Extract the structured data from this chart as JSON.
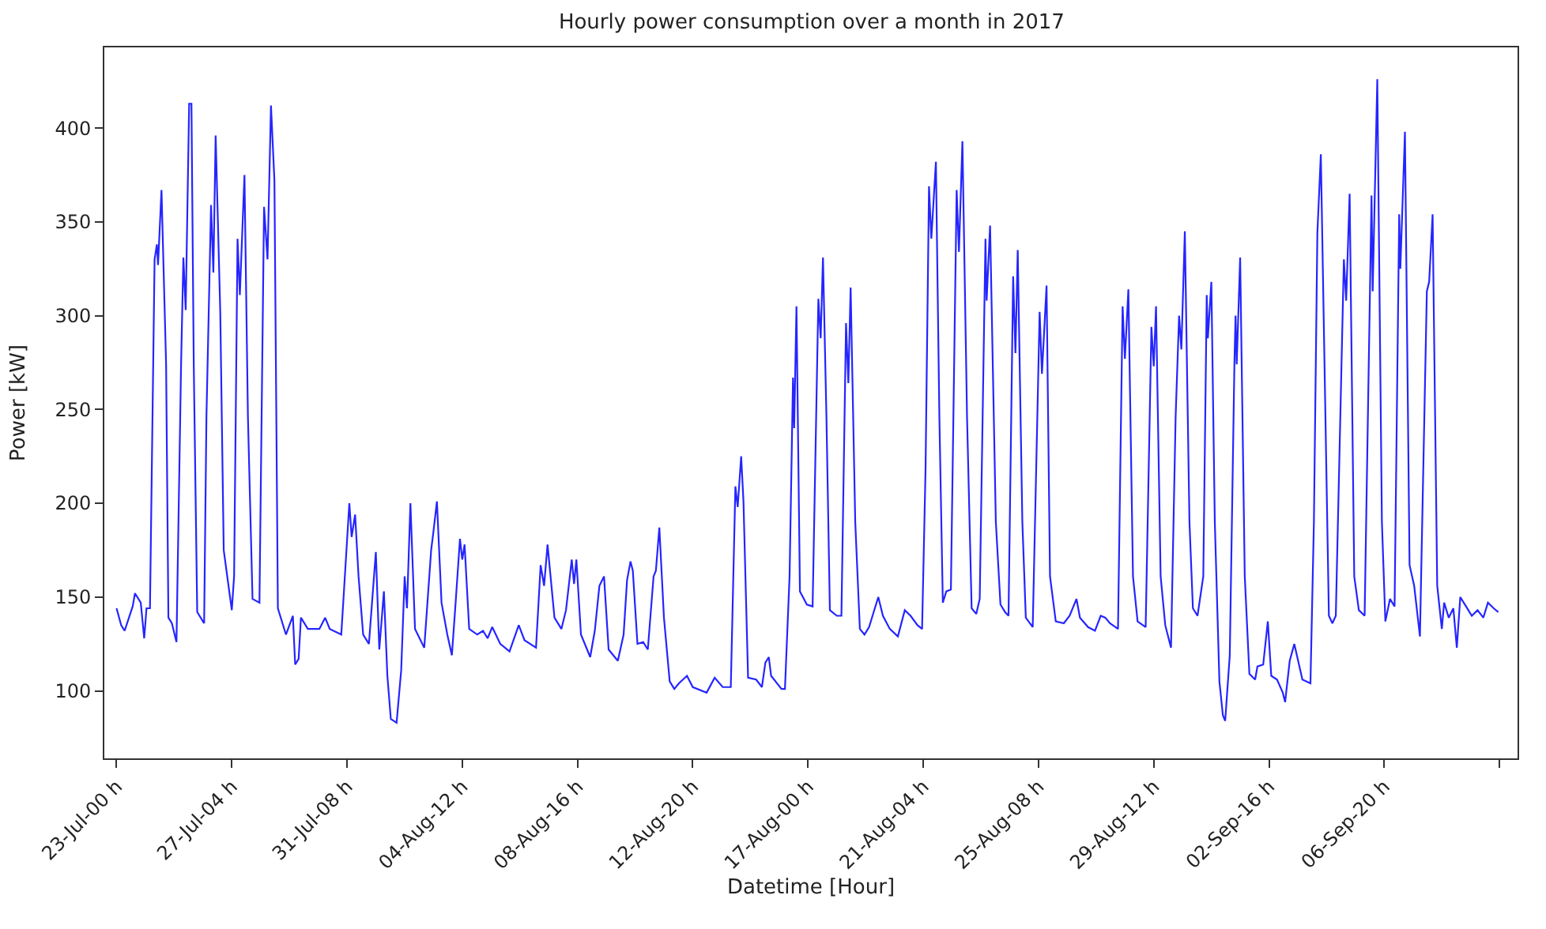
{
  "chart_data": {
    "type": "line",
    "title": "Hourly power consumption over a month in 2017",
    "xlabel": "Datetime [Hour]",
    "ylabel": "Power [kW]",
    "xlim": [
      "2017-07-22T13:24",
      "2017-09-11T15:42"
    ],
    "xticks": [
      {
        "value": "2017-07-23T00:00",
        "label": "23-Jul-00 h"
      },
      {
        "value": "2017-07-27T04:00",
        "label": "27-Jul-04 h"
      },
      {
        "value": "2017-07-31T08:00",
        "label": "31-Jul-08 h"
      },
      {
        "value": "2017-08-04T12:00",
        "label": "04-Aug-12 h"
      },
      {
        "value": "2017-08-08T16:00",
        "label": "08-Aug-16 h"
      },
      {
        "value": "2017-08-12T20:00",
        "label": "12-Aug-20 h"
      },
      {
        "value": "2017-08-17T00:00",
        "label": "17-Aug-00 h"
      },
      {
        "value": "2017-08-21T04:00",
        "label": "21-Aug-04 h"
      },
      {
        "value": "2017-08-25T08:00",
        "label": "25-Aug-08 h"
      },
      {
        "value": "2017-08-29T12:00",
        "label": "29-Aug-12 h"
      },
      {
        "value": "2017-09-02T16:00",
        "label": "02-Sep-16 h"
      },
      {
        "value": "2017-09-06T20:00",
        "label": "06-Sep-20 h"
      },
      {
        "value": "2017-09-11T00:00",
        "label": null
      }
    ],
    "ylim": [
      64,
      443
    ],
    "yticks": [
      100,
      150,
      200,
      250,
      300,
      350,
      400
    ],
    "marker": "none",
    "line_style": "solid",
    "series": [
      {
        "color": "#0000ff",
        "x": [
          "2017-07-23T00:00",
          "2017-07-23T04:00",
          "2017-07-23T07:00",
          "2017-07-23T14:00",
          "2017-07-23T16:00",
          "2017-07-23T21:00",
          "2017-07-24T00:00",
          "2017-07-24T02:00",
          "2017-07-24T05:00",
          "2017-07-24T09:00",
          "2017-07-24T11:00",
          "2017-07-24T12:00",
          "2017-07-24T15:00",
          "2017-07-24T19:00",
          "2017-07-24T21:00",
          "2017-07-25T00:00",
          "2017-07-25T04:00",
          "2017-07-25T08:00",
          "2017-07-25T10:00",
          "2017-07-25T12:00",
          "2017-07-25T15:00",
          "2017-07-25T17:00",
          "2017-07-25T19:00",
          "2017-07-25T22:00",
          "2017-07-26T04:00",
          "2017-07-26T06:00",
          "2017-07-26T10:00",
          "2017-07-26T12:00",
          "2017-07-26T14:00",
          "2017-07-26T18:00",
          "2017-07-26T21:00",
          "2017-07-27T04:00",
          "2017-07-27T06:00",
          "2017-07-27T09:00",
          "2017-07-27T11:00",
          "2017-07-27T15:00",
          "2017-07-27T18:00",
          "2017-07-27T22:00",
          "2017-07-28T04:00",
          "2017-07-28T08:00",
          "2017-07-28T11:00",
          "2017-07-28T14:00",
          "2017-07-28T17:00",
          "2017-07-28T20:00",
          "2017-07-29T03:00",
          "2017-07-29T09:00",
          "2017-07-29T11:00",
          "2017-07-29T14:00",
          "2017-07-29T16:00",
          "2017-07-29T22:00",
          "2017-07-30T08:00",
          "2017-07-30T13:00",
          "2017-07-30T17:00",
          "2017-07-31T03:00",
          "2017-07-31T05:00",
          "2017-07-31T10:00",
          "2017-07-31T12:00",
          "2017-07-31T15:00",
          "2017-07-31T18:00",
          "2017-07-31T22:00",
          "2017-08-01T03:00",
          "2017-08-01T09:00",
          "2017-08-01T12:00",
          "2017-08-01T16:00",
          "2017-08-01T19:00",
          "2017-08-01T22:00",
          "2017-08-02T03:00",
          "2017-08-02T07:00",
          "2017-08-02T10:00",
          "2017-08-02T12:00",
          "2017-08-02T15:00",
          "2017-08-02T19:00",
          "2017-08-03T03:00",
          "2017-08-03T09:00",
          "2017-08-03T11:00",
          "2017-08-03T14:00",
          "2017-08-03T18:00",
          "2017-08-03T23:00",
          "2017-08-04T03:00",
          "2017-08-04T06:00",
          "2017-08-04T10:00",
          "2017-08-04T12:00",
          "2017-08-04T14:00",
          "2017-08-04T18:00",
          "2017-08-05T01:00",
          "2017-08-05T06:00",
          "2017-08-05T10:00",
          "2017-08-05T14:00",
          "2017-08-05T21:00",
          "2017-08-06T05:00",
          "2017-08-06T13:00",
          "2017-08-06T18:00",
          "2017-08-07T04:00",
          "2017-08-07T08:00",
          "2017-08-07T11:00",
          "2017-08-07T14:00",
          "2017-08-07T20:00",
          "2017-08-08T02:00",
          "2017-08-08T06:00",
          "2017-08-08T11:00",
          "2017-08-08T13:00",
          "2017-08-08T15:00",
          "2017-08-08T19:00",
          "2017-08-09T03:00",
          "2017-08-09T07:00",
          "2017-08-09T11:00",
          "2017-08-09T15:00",
          "2017-08-09T19:00",
          "2017-08-10T03:00",
          "2017-08-10T08:00",
          "2017-08-10T11:00",
          "2017-08-10T14:00",
          "2017-08-10T16:00",
          "2017-08-10T20:00",
          "2017-08-11T01:00",
          "2017-08-11T05:00",
          "2017-08-11T10:00",
          "2017-08-11T12:00",
          "2017-08-11T15:00",
          "2017-08-11T19:00",
          "2017-08-12T00:00",
          "2017-08-12T04:00",
          "2017-08-12T08:00",
          "2017-08-12T15:00",
          "2017-08-12T20:00",
          "2017-08-13T08:00",
          "2017-08-13T15:00",
          "2017-08-13T22:00",
          "2017-08-14T05:00",
          "2017-08-14T09:00",
          "2017-08-14T11:00",
          "2017-08-14T14:00",
          "2017-08-14T16:00",
          "2017-08-14T20:00",
          "2017-08-15T03:00",
          "2017-08-15T08:00",
          "2017-08-15T11:00",
          "2017-08-15T14:00",
          "2017-08-15T16:00",
          "2017-08-16T01:00",
          "2017-08-16T04:00",
          "2017-08-16T08:00",
          "2017-08-16T11:00",
          "2017-08-16T12:00",
          "2017-08-16T14:00",
          "2017-08-16T17:00",
          "2017-08-16T23:00",
          "2017-08-17T04:00",
          "2017-08-17T09:00",
          "2017-08-17T11:00",
          "2017-08-17T13:00",
          "2017-08-17T16:00",
          "2017-08-17T19:00",
          "2017-08-18T01:00",
          "2017-08-18T05:00",
          "2017-08-18T09:00",
          "2017-08-18T11:00",
          "2017-08-18T13:00",
          "2017-08-18T17:00",
          "2017-08-18T21:00",
          "2017-08-19T01:00",
          "2017-08-19T05:00",
          "2017-08-19T08:00",
          "2017-08-19T13:00",
          "2017-08-19T17:00",
          "2017-08-19T23:00",
          "2017-08-20T06:00",
          "2017-08-20T12:00",
          "2017-08-20T17:00",
          "2017-08-20T23:00",
          "2017-08-21T03:00",
          "2017-08-21T06:00",
          "2017-08-21T09:00",
          "2017-08-21T11:00",
          "2017-08-21T15:00",
          "2017-08-21T18:00",
          "2017-08-21T21:00",
          "2017-08-22T00:00",
          "2017-08-22T04:00",
          "2017-08-22T09:00",
          "2017-08-22T11:00",
          "2017-08-22T14:00",
          "2017-08-22T18:00",
          "2017-08-22T22:00",
          "2017-08-23T02:00",
          "2017-08-23T05:00",
          "2017-08-23T10:00",
          "2017-08-23T11:00",
          "2017-08-23T14:00",
          "2017-08-23T19:00",
          "2017-08-23T23:00",
          "2017-08-24T03:00",
          "2017-08-24T06:00",
          "2017-08-24T10:00",
          "2017-08-24T12:00",
          "2017-08-24T14:00",
          "2017-08-24T18:00",
          "2017-08-24T21:00",
          "2017-08-25T03:00",
          "2017-08-25T09:00",
          "2017-08-25T11:00",
          "2017-08-25T15:00",
          "2017-08-25T18:00",
          "2017-08-25T23:00",
          "2017-08-26T06:00",
          "2017-08-26T11:00",
          "2017-08-26T17:00",
          "2017-08-26T20:00",
          "2017-08-27T03:00",
          "2017-08-27T09:00",
          "2017-08-27T14:00",
          "2017-08-27T18:00",
          "2017-08-27T22:00",
          "2017-08-28T05:00",
          "2017-08-28T09:00",
          "2017-08-28T11:00",
          "2017-08-28T14:00",
          "2017-08-28T18:00",
          "2017-08-28T22:00",
          "2017-08-29T05:00",
          "2017-08-29T10:00",
          "2017-08-29T12:00",
          "2017-08-29T14:00",
          "2017-08-29T18:00",
          "2017-08-29T22:00",
          "2017-08-30T03:00",
          "2017-08-30T07:00",
          "2017-08-30T10:00",
          "2017-08-30T12:00",
          "2017-08-30T15:00",
          "2017-08-30T19:00",
          "2017-08-30T22:00",
          "2017-08-31T02:00",
          "2017-08-31T07:00",
          "2017-08-31T10:00",
          "2017-08-31T11:00",
          "2017-08-31T14:00",
          "2017-08-31T17:00",
          "2017-08-31T21:00",
          "2017-09-01T00:00",
          "2017-09-01T02:00",
          "2017-09-01T06:00",
          "2017-09-01T10:00",
          "2017-09-01T11:00",
          "2017-09-01T12:00",
          "2017-09-01T15:00",
          "2017-09-01T19:00",
          "2017-09-01T23:00",
          "2017-09-02T04:00",
          "2017-09-02T06:00",
          "2017-09-02T11:00",
          "2017-09-02T15:00",
          "2017-09-02T18:00",
          "2017-09-02T23:00",
          "2017-09-03T04:00",
          "2017-09-03T06:00",
          "2017-09-03T10:00",
          "2017-09-03T14:00",
          "2017-09-03T21:00",
          "2017-09-04T04:00",
          "2017-09-04T07:00",
          "2017-09-04T10:00",
          "2017-09-04T13:00",
          "2017-09-04T17:00",
          "2017-09-04T20:00",
          "2017-09-04T23:00",
          "2017-09-05T02:00",
          "2017-09-05T09:00",
          "2017-09-05T11:00",
          "2017-09-05T14:00",
          "2017-09-05T18:00",
          "2017-09-05T22:00",
          "2017-09-06T03:00",
          "2017-09-06T09:00",
          "2017-09-06T10:00",
          "2017-09-06T14:00",
          "2017-09-06T18:00",
          "2017-09-06T21:00",
          "2017-09-07T01:00",
          "2017-09-07T05:00",
          "2017-09-07T09:00",
          "2017-09-07T10:00",
          "2017-09-07T14:00",
          "2017-09-07T18:00",
          "2017-09-07T22:00",
          "2017-09-08T03:00",
          "2017-09-08T09:00",
          "2017-09-08T11:00",
          "2017-09-08T14:00",
          "2017-09-08T18:00",
          "2017-09-08T22:00",
          "2017-09-09T00:00",
          "2017-09-09T04:00",
          "2017-09-09T08:00",
          "2017-09-09T11:00",
          "2017-09-09T14:00",
          "2017-09-09T19:00",
          "2017-09-10T00:00",
          "2017-09-10T05:00",
          "2017-09-10T10:00",
          "2017-09-10T14:00",
          "2017-09-10T19:00",
          "2017-09-10T23:00"
        ],
        "values": [
          144,
          135,
          132,
          145,
          152,
          147,
          128,
          144,
          144,
          330,
          338,
          327,
          367,
          274,
          139,
          136,
          126,
          274,
          331,
          303,
          413,
          413,
          274,
          142,
          136,
          246,
          359,
          323,
          396,
          302,
          175,
          143,
          161,
          341,
          311,
          375,
          246,
          149,
          147,
          358,
          330,
          412,
          372,
          144,
          130,
          140,
          114,
          117,
          139,
          133,
          133,
          139,
          133,
          130,
          150,
          200,
          182,
          194,
          161,
          130,
          125,
          174,
          122,
          153,
          108,
          85,
          83,
          111,
          161,
          144,
          200,
          133,
          123,
          175,
          185,
          201,
          147,
          130,
          119,
          145,
          181,
          170,
          178,
          133,
          130,
          132,
          128,
          134,
          125,
          121,
          135,
          127,
          123,
          167,
          156,
          178,
          139,
          133,
          143,
          170,
          157,
          170,
          130,
          118,
          132,
          156,
          161,
          122,
          116,
          130,
          159,
          169,
          164,
          125,
          126,
          122,
          161,
          164,
          187,
          139,
          105,
          101,
          104,
          108,
          102,
          99,
          107,
          102,
          102,
          209,
          198,
          225,
          201,
          107,
          106,
          102,
          115,
          118,
          108,
          101,
          101,
          161,
          267,
          240,
          305,
          153,
          146,
          145,
          309,
          288,
          331,
          246,
          143,
          140,
          140,
          296,
          264,
          315,
          190,
          133,
          130,
          134,
          140,
          150,
          140,
          133,
          129,
          143,
          140,
          135,
          133,
          218,
          369,
          341,
          382,
          246,
          147,
          153,
          154,
          367,
          334,
          393,
          246,
          144,
          141,
          149,
          341,
          308,
          348,
          190,
          146,
          142,
          140,
          321,
          280,
          335,
          190,
          139,
          134,
          302,
          269,
          316,
          161,
          137,
          136,
          140,
          149,
          139,
          134,
          132,
          140,
          139,
          136,
          133,
          305,
          277,
          314,
          161,
          137,
          134,
          294,
          273,
          305,
          161,
          135,
          123,
          246,
          300,
          282,
          345,
          190,
          144,
          140,
          161,
          311,
          288,
          318,
          190,
          105,
          87,
          84,
          119,
          274,
          300,
          274,
          331,
          161,
          109,
          106,
          113,
          114,
          137,
          108,
          106,
          99,
          94,
          116,
          125,
          106,
          104,
          190,
          344,
          386,
          246,
          140,
          136,
          140,
          330,
          308,
          365,
          161,
          143,
          140,
          364,
          313,
          426,
          190,
          137,
          149,
          145,
          354,
          325,
          398,
          167,
          156,
          129,
          313,
          318,
          354,
          156,
          133,
          147,
          139,
          144,
          123,
          150,
          145,
          140,
          143,
          139,
          147,
          144,
          142
        ]
      }
    ]
  }
}
